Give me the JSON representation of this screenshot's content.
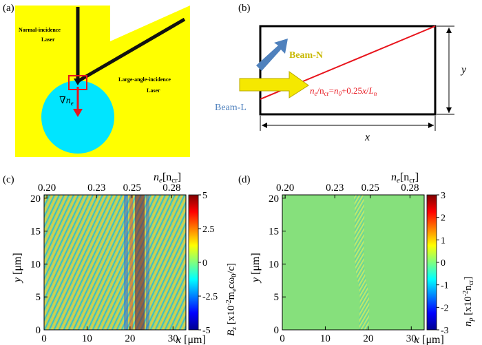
{
  "panels": {
    "a": {
      "label": "(a)",
      "normal_laser": [
        "Normal-incidence",
        "Laser"
      ],
      "angle_laser": [
        "Large-angle-incidence",
        "Laser"
      ],
      "grad_symbol": "∇",
      "grad_var": "n",
      "grad_sub": "e",
      "colors": {
        "background": "#ffff00",
        "plasma": "#00e5ff",
        "beam": "#111111",
        "arrow": "#e8141c"
      }
    },
    "b": {
      "label": "(b)",
      "beam_n": "Beam-N",
      "beam_l": "Beam-L",
      "eq_ne": "n",
      "eq_e": "e",
      "eq_mid": "/n",
      "eq_cr": "cr",
      "eq_eq": "=",
      "eq_n0": "n",
      "eq_0": "0",
      "eq_tail": "+0.25",
      "eq_x": "x",
      "eq_slash": "/",
      "eq_L": "L",
      "eq_n": "n",
      "axis_x": "x",
      "axis_y": "y",
      "colors": {
        "beam_n": "#e8d800",
        "beam_l": "#4f81bd",
        "gradient": "#e8141c"
      }
    },
    "c": {
      "label": "(c)",
      "top_axis_var": "n",
      "top_axis_sub": "e",
      "top_axis_unit": "[n",
      "top_axis_unit_sub": "cr",
      "top_axis_close": "]",
      "top_ticks": [
        "0.20",
        "0.23",
        "0.25",
        "0.28"
      ],
      "x_ticks": [
        "0",
        "10",
        "20",
        "30"
      ],
      "y_ticks": [
        "0",
        "5",
        "10",
        "15",
        "20"
      ],
      "xlabel_var": "x",
      "xlabel_unit": "[μm]",
      "ylabel_var": "y",
      "ylabel_unit": "[μm]",
      "colorbar_ticks": [
        "5",
        "2.5",
        "0",
        "-2.5",
        "-5"
      ],
      "colorbar_var": "B",
      "colorbar_sub": "z",
      "colorbar_unit": "[x10",
      "colorbar_exp": "-2",
      "colorbar_unit2": "m",
      "colorbar_unit2_sub": "e",
      "colorbar_unit3": "cω",
      "colorbar_unit3_sub": "0",
      "colorbar_unit4": "/c]"
    },
    "d": {
      "label": "(d)",
      "top_axis_var": "n",
      "top_axis_sub": "e",
      "top_axis_unit": "[n",
      "top_axis_unit_sub": "cr",
      "top_axis_close": "]",
      "top_ticks": [
        "0.20",
        "0.23",
        "0.25",
        "0.28"
      ],
      "x_ticks": [
        "0",
        "10",
        "20",
        "30"
      ],
      "y_ticks": [
        "0",
        "5",
        "10",
        "15",
        "20"
      ],
      "xlabel_var": "x",
      "xlabel_unit": "[μm]",
      "ylabel_var": "y",
      "ylabel_unit": "[μm]",
      "colorbar_ticks": [
        "3",
        "2",
        "1",
        "0",
        "-1",
        "-2",
        "-3"
      ],
      "colorbar_var": "n",
      "colorbar_sub": "p",
      "colorbar_unit": "[x10",
      "colorbar_exp": "-2",
      "colorbar_unit2": "n",
      "colorbar_unit2_sub": "cr",
      "colorbar_unit3": "]"
    }
  },
  "chart_data": [
    {
      "type": "heatmap",
      "xlabel": "x [μm]",
      "ylabel": "y [μm]",
      "xlim": [
        0,
        33
      ],
      "ylim": [
        0,
        20.5
      ],
      "top_axis": {
        "label": "ne [ncr]",
        "ticks": [
          0.2,
          0.23,
          0.25,
          0.28
        ]
      },
      "colorbar": {
        "label": "Bz [x10-2 meω0/c]",
        "range": [
          -5,
          5
        ],
        "ticks": [
          5,
          2.5,
          0,
          -2.5,
          -5
        ]
      }
    },
    {
      "type": "heatmap",
      "xlabel": "x [μm]",
      "ylabel": "y [μm]",
      "xlim": [
        0,
        33
      ],
      "ylim": [
        0,
        20.5
      ],
      "top_axis": {
        "label": "ne [ncr]",
        "ticks": [
          0.2,
          0.23,
          0.25,
          0.28
        ]
      },
      "colorbar": {
        "label": "np [x10-2 ncr]",
        "range": [
          -3,
          3
        ],
        "ticks": [
          3,
          2,
          1,
          0,
          -1,
          -2,
          -3
        ]
      }
    }
  ]
}
